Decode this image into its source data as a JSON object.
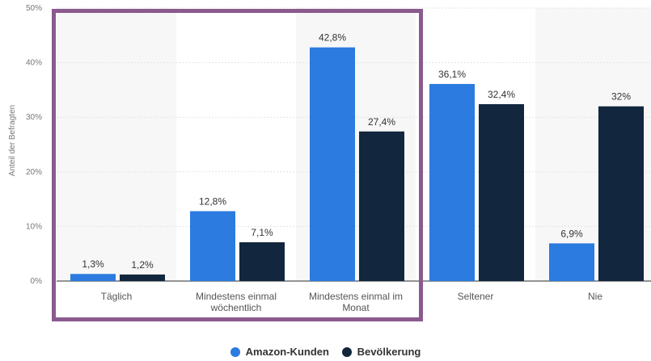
{
  "chart_data": {
    "type": "bar",
    "categories": [
      [
        "Täglich"
      ],
      [
        "Mindestens einmal",
        "wöchentlich"
      ],
      [
        "Mindestens einmal im",
        "Monat"
      ],
      [
        "Seltener"
      ],
      [
        "Nie"
      ]
    ],
    "series": [
      {
        "name": "Amazon-Kunden",
        "color": "#2b7be0",
        "values": [
          1.3,
          12.8,
          42.8,
          36.1,
          6.9
        ],
        "labels": [
          "1,3%",
          "12,8%",
          "42,8%",
          "36,1%",
          "6,9%"
        ]
      },
      {
        "name": "Bevölkerung",
        "color": "#12263d",
        "values": [
          1.2,
          7.1,
          27.4,
          32.4,
          32.0
        ],
        "labels": [
          "1,2%",
          "7,1%",
          "27,4%",
          "32,4%",
          "32%"
        ]
      }
    ],
    "ylabel": "Anteil der Befragten",
    "ylim": [
      0,
      50
    ],
    "yticks": [
      0,
      10,
      20,
      30,
      40,
      50
    ],
    "ytick_labels": [
      "0%",
      "10%",
      "20%",
      "30%",
      "40%",
      "50%"
    ],
    "grid": true,
    "legend": "bottom",
    "highlight": {
      "categories": [
        0,
        1,
        2
      ],
      "color": "#8a5a8e"
    }
  }
}
